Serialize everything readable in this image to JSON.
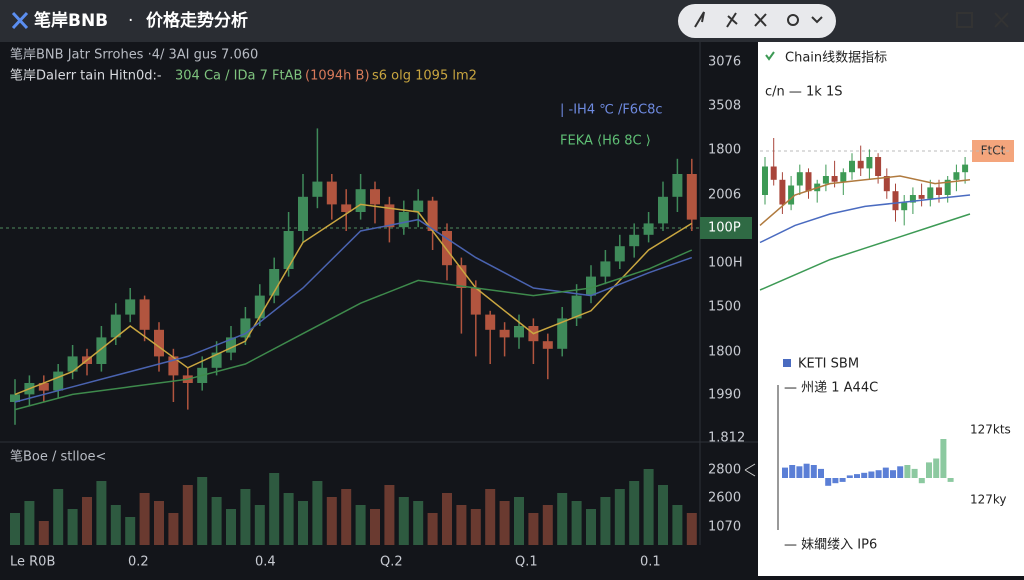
{
  "header": {
    "app": "笔岸BNB",
    "separator": "·",
    "title": "价格走势分析"
  },
  "main_chart": {
    "info_lines": [
      "笔岸BNB  Jatr Srrohes  ·4/ 3AI  gus 7.060",
      "笔岸Dalerr tain  Hitn0d:-"
    ],
    "info_values": [
      "304 Ca  / IDa 7 FtAB",
      "(1094h B)",
      "s6 olg  1095 lm2"
    ],
    "annotations": [
      "| -IH4 ℃ /F6C8c",
      "FEKA ⟨H6 8C ⟩"
    ],
    "price_labels": [
      "3076",
      "3508",
      "1800",
      "2006",
      "100P",
      "100H",
      "1500",
      "1800",
      "1990",
      "1.812"
    ],
    "current_label_index": 4,
    "ylim": [
      0,
      100
    ],
    "opens": [
      10,
      12,
      15,
      13,
      18,
      22,
      20,
      27,
      33,
      37,
      29,
      22,
      17,
      15,
      19,
      23,
      27,
      32,
      38,
      45,
      55,
      64,
      68,
      62,
      60,
      66,
      62,
      56,
      60,
      63,
      55,
      46,
      40,
      33,
      29,
      27,
      30,
      26,
      24,
      32,
      38,
      43,
      47,
      51,
      54,
      57,
      64,
      70
    ],
    "highs": [
      16,
      17,
      17,
      20,
      25,
      24,
      30,
      36,
      40,
      38,
      31,
      24,
      19,
      22,
      26,
      30,
      35,
      41,
      48,
      60,
      70,
      82,
      70,
      66,
      70,
      68,
      64,
      63,
      66,
      64,
      57,
      48,
      42,
      34,
      31,
      33,
      32,
      28,
      35,
      41,
      46,
      50,
      54,
      57,
      60,
      68,
      74,
      74
    ],
    "lows": [
      4,
      9,
      10,
      11,
      16,
      17,
      18,
      25,
      31,
      26,
      18,
      10,
      8,
      13,
      17,
      21,
      25,
      30,
      36,
      43,
      52,
      61,
      58,
      55,
      58,
      57,
      52,
      54,
      56,
      50,
      42,
      28,
      22,
      20,
      22,
      24,
      20,
      16,
      22,
      30,
      36,
      41,
      45,
      48,
      52,
      55,
      60,
      55
    ],
    "closes": [
      12,
      15,
      13,
      18,
      22,
      20,
      27,
      33,
      37,
      29,
      22,
      17,
      15,
      19,
      23,
      27,
      32,
      38,
      45,
      55,
      64,
      68,
      62,
      60,
      66,
      62,
      56,
      60,
      63,
      55,
      46,
      40,
      33,
      29,
      27,
      30,
      26,
      24,
      32,
      38,
      43,
      47,
      51,
      54,
      57,
      64,
      70,
      58
    ],
    "up_color": "#3f8a5a",
    "down_color": "#b2553f",
    "ma_x": [
      0,
      4,
      8,
      12,
      16,
      20,
      24,
      28,
      32,
      36,
      40,
      44,
      47
    ],
    "ma": [
      {
        "color": "#c9a640",
        "values": [
          12,
          18,
          30,
          19,
          26,
          52,
          62,
          60,
          40,
          28,
          34,
          50,
          57
        ]
      },
      {
        "color": "#4a63b0",
        "values": [
          10,
          14,
          18,
          22,
          28,
          40,
          55,
          58,
          48,
          40,
          38,
          44,
          48
        ]
      },
      {
        "color": "#3e8a4c",
        "values": [
          8,
          12,
          14,
          16,
          20,
          28,
          36,
          42,
          40,
          38,
          40,
          45,
          50
        ]
      }
    ],
    "volume_label": "笔Boe / stlloe<",
    "volume_axis": [
      "2800",
      "2600",
      "1070"
    ],
    "volume_ylim": [
      0,
      100
    ],
    "volumes": [
      40,
      55,
      30,
      70,
      45,
      60,
      80,
      50,
      35,
      65,
      55,
      40,
      75,
      85,
      60,
      45,
      70,
      50,
      90,
      65,
      55,
      80,
      60,
      70,
      50,
      45,
      75,
      60,
      55,
      40,
      65,
      50,
      45,
      70,
      55,
      60,
      40,
      50,
      65,
      55,
      45,
      60,
      70,
      80,
      95,
      75,
      50,
      40
    ],
    "x_labels": [
      "Le R0B",
      "0.2",
      "0.4",
      "Q.2",
      "Q.1",
      "0.1"
    ]
  },
  "side_panel": {
    "title": "Chain线数据指标",
    "subtitle": "c/n — 1k   1S",
    "tag": "FtCt",
    "mini_ylim": [
      0,
      100
    ],
    "candles": [
      [
        50,
        70,
        45,
        65
      ],
      [
        65,
        80,
        55,
        58
      ],
      [
        58,
        62,
        40,
        45
      ],
      [
        45,
        60,
        42,
        55
      ],
      [
        55,
        66,
        50,
        62
      ],
      [
        62,
        64,
        48,
        52
      ],
      [
        52,
        58,
        46,
        56
      ],
      [
        56,
        66,
        52,
        60
      ],
      [
        60,
        68,
        54,
        57
      ],
      [
        57,
        64,
        50,
        62
      ],
      [
        62,
        72,
        58,
        68
      ],
      [
        68,
        76,
        60,
        64
      ],
      [
        64,
        74,
        58,
        70
      ],
      [
        70,
        72,
        56,
        60
      ],
      [
        60,
        64,
        48,
        52
      ],
      [
        52,
        56,
        36,
        42
      ],
      [
        42,
        50,
        34,
        46
      ],
      [
        46,
        54,
        40,
        50
      ],
      [
        50,
        56,
        44,
        48
      ],
      [
        48,
        58,
        44,
        54
      ],
      [
        54,
        58,
        46,
        50
      ],
      [
        50,
        60,
        46,
        58
      ],
      [
        58,
        66,
        52,
        62
      ],
      [
        62,
        70,
        56,
        66
      ]
    ],
    "lines": [
      {
        "color": "#b07a3e",
        "values": [
          34,
          50,
          56,
          58,
          60,
          56,
          58
        ]
      },
      {
        "color": "#4a6bc0",
        "values": [
          25,
          34,
          40,
          44,
          46,
          48,
          50
        ]
      },
      {
        "color": "#3d9a55",
        "values": [
          0,
          8,
          16,
          22,
          28,
          34,
          40
        ]
      }
    ],
    "section_title": "KETI SBM",
    "section_sub": "— 州递 1 A44C",
    "hist_labels": [
      "127kts",
      "127ky"
    ],
    "hist_values": [
      8,
      10,
      9,
      11,
      10,
      7,
      -6,
      -4,
      -3,
      2,
      3,
      4,
      5,
      6,
      8,
      6,
      9,
      10,
      7,
      -4,
      12,
      15,
      30,
      -3
    ],
    "hist_color": "#5b7fd6",
    "hist_highlight_color": "#8cc9a0",
    "hist_highlight_from": 17,
    "footer": "— 妹繝缕入 IP6"
  }
}
